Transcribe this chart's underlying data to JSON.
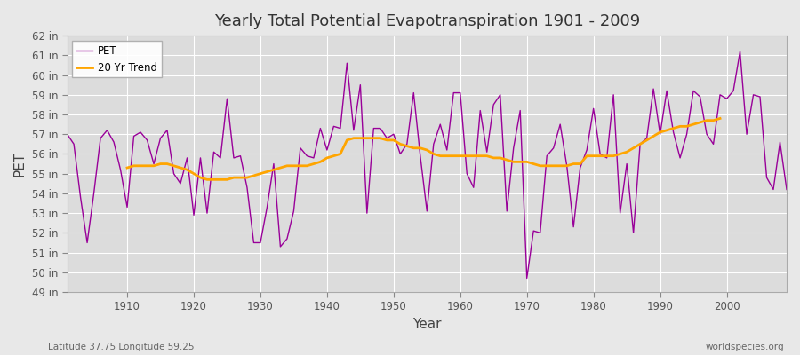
{
  "title": "Yearly Total Potential Evapotranspiration 1901 - 2009",
  "xlabel": "Year",
  "ylabel": "PET",
  "pet_color": "#990099",
  "trend_color": "#FFA500",
  "background_color": "#E8E8E8",
  "plot_bg_color": "#DCDCDC",
  "grid_color": "#FFFFFF",
  "subtitle_left": "Latitude 37.75 Longitude 59.25",
  "subtitle_right": "worldspecies.org",
  "legend_labels": [
    "PET",
    "20 Yr Trend"
  ],
  "ylim": [
    49,
    62
  ],
  "yticks": [
    49,
    50,
    51,
    52,
    53,
    54,
    55,
    56,
    57,
    58,
    59,
    60,
    61,
    62
  ],
  "years": [
    1901,
    1902,
    1903,
    1904,
    1905,
    1906,
    1907,
    1908,
    1909,
    1910,
    1911,
    1912,
    1913,
    1914,
    1915,
    1916,
    1917,
    1918,
    1919,
    1920,
    1921,
    1922,
    1923,
    1924,
    1925,
    1926,
    1927,
    1928,
    1929,
    1930,
    1931,
    1932,
    1933,
    1934,
    1935,
    1936,
    1937,
    1938,
    1939,
    1940,
    1941,
    1942,
    1943,
    1944,
    1945,
    1946,
    1947,
    1948,
    1949,
    1950,
    1951,
    1952,
    1953,
    1954,
    1955,
    1956,
    1957,
    1958,
    1959,
    1960,
    1961,
    1962,
    1963,
    1964,
    1965,
    1966,
    1967,
    1968,
    1969,
    1970,
    1971,
    1972,
    1973,
    1974,
    1975,
    1976,
    1977,
    1978,
    1979,
    1980,
    1981,
    1982,
    1983,
    1984,
    1985,
    1986,
    1987,
    1988,
    1989,
    1990,
    1991,
    1992,
    1993,
    1994,
    1995,
    1996,
    1997,
    1998,
    1999,
    2000,
    2001,
    2002,
    2003,
    2004,
    2005,
    2006,
    2007,
    2008,
    2009
  ],
  "pet_values": [
    57.0,
    56.5,
    53.8,
    51.5,
    54.0,
    56.8,
    57.2,
    56.6,
    55.2,
    53.3,
    56.9,
    57.1,
    56.7,
    55.5,
    56.8,
    57.2,
    55.0,
    54.5,
    55.8,
    52.9,
    55.8,
    53.0,
    56.1,
    55.8,
    58.8,
    55.8,
    55.9,
    54.3,
    51.5,
    51.5,
    53.3,
    55.5,
    51.3,
    51.7,
    53.1,
    56.3,
    55.9,
    55.8,
    57.3,
    56.2,
    57.4,
    57.3,
    60.6,
    57.2,
    59.5,
    53.0,
    57.3,
    57.3,
    56.8,
    57.0,
    56.0,
    56.5,
    59.1,
    55.9,
    53.1,
    56.5,
    57.5,
    56.2,
    59.1,
    59.1,
    55.0,
    54.3,
    58.2,
    56.1,
    58.5,
    59.0,
    53.1,
    56.3,
    58.2,
    49.7,
    52.1,
    52.0,
    55.9,
    56.3,
    57.5,
    55.4,
    52.3,
    55.3,
    56.2,
    58.3,
    56.0,
    55.8,
    59.0,
    53.0,
    55.5,
    52.0,
    56.5,
    56.8,
    59.3,
    57.0,
    59.2,
    57.1,
    55.8,
    57.0,
    59.2,
    58.9,
    57.0,
    56.5,
    59.0,
    58.8,
    59.2,
    61.2,
    57.0,
    59.0,
    58.9,
    54.8,
    54.2,
    56.6,
    54.2
  ],
  "trend_values": [
    null,
    null,
    null,
    null,
    null,
    null,
    null,
    null,
    null,
    55.3,
    55.4,
    55.4,
    55.4,
    55.4,
    55.5,
    55.5,
    55.4,
    55.3,
    55.2,
    55.0,
    54.8,
    54.7,
    54.7,
    54.7,
    54.7,
    54.8,
    54.8,
    54.8,
    54.9,
    55.0,
    55.1,
    55.2,
    55.3,
    55.4,
    55.4,
    55.4,
    55.4,
    55.5,
    55.6,
    55.8,
    55.9,
    56.0,
    56.7,
    56.8,
    56.8,
    56.8,
    56.8,
    56.8,
    56.7,
    56.7,
    56.5,
    56.4,
    56.3,
    56.3,
    56.2,
    56.0,
    55.9,
    55.9,
    55.9,
    55.9,
    55.9,
    55.9,
    55.9,
    55.9,
    55.8,
    55.8,
    55.7,
    55.6,
    55.6,
    55.6,
    55.5,
    55.4,
    55.4,
    55.4,
    55.4,
    55.4,
    55.5,
    55.5,
    55.9,
    55.9,
    55.9,
    55.9,
    55.9,
    56.0,
    56.1,
    56.3,
    56.5,
    56.7,
    56.9,
    57.1,
    57.2,
    57.3,
    57.4,
    57.4,
    57.5,
    57.6,
    57.7,
    57.7,
    57.8,
    null,
    null,
    null,
    null,
    null,
    null,
    null,
    null,
    null,
    null
  ]
}
